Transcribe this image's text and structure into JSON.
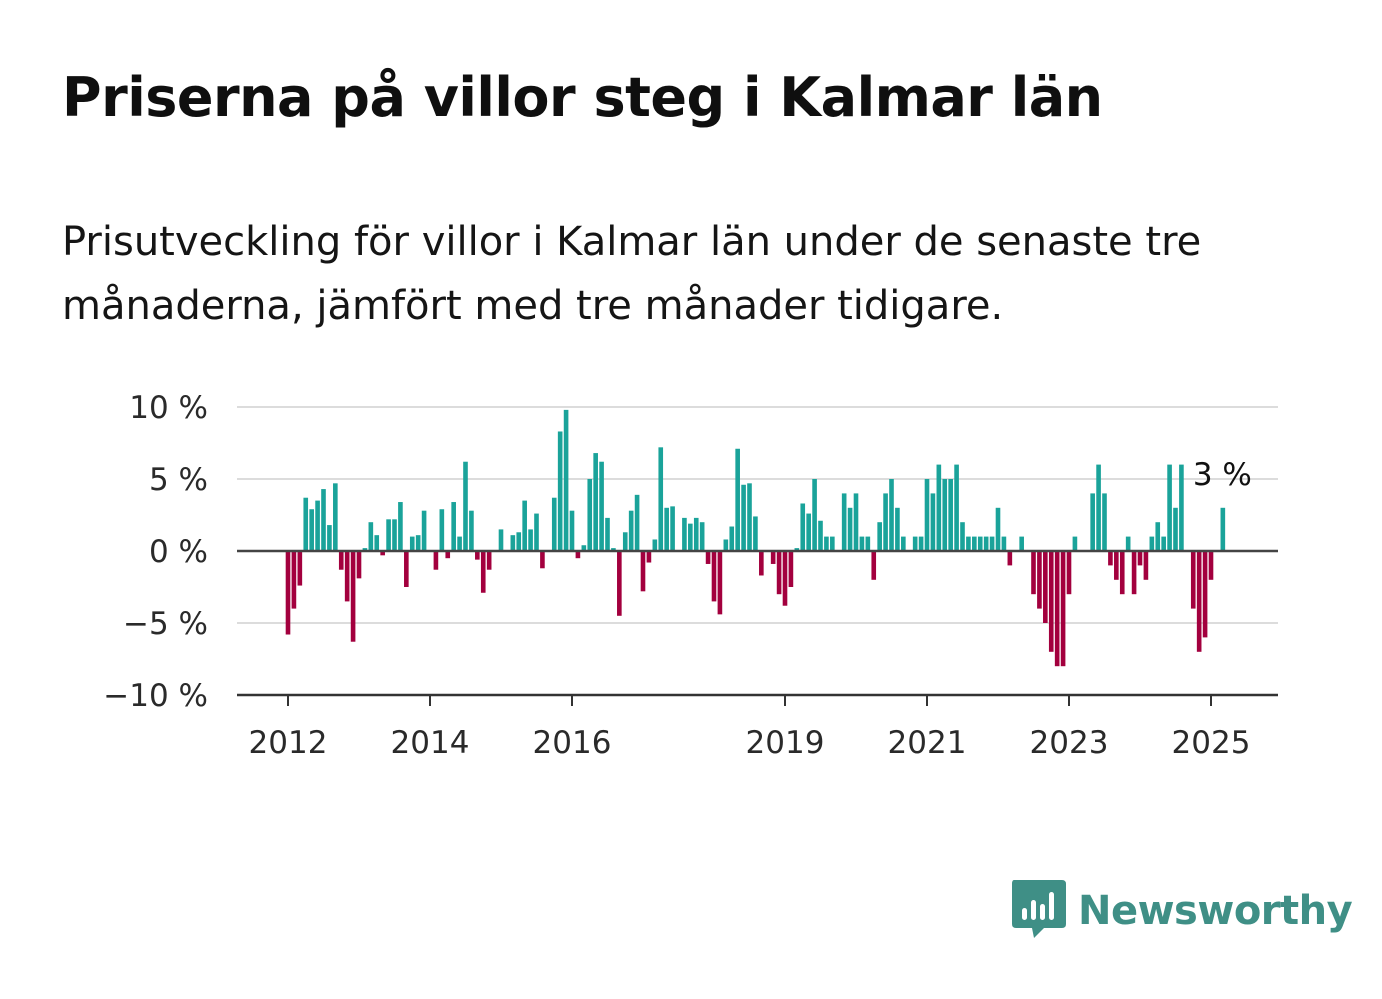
{
  "header": {
    "title": "Priserna på villor steg i Kalmar län",
    "subtitle": "Prisutveckling för villor i Kalmar län under de senaste tre månaderna, jämfört med tre månader tidigare."
  },
  "brand": {
    "name": "Newsworthy",
    "icon": "newsworthy-logo-icon",
    "color": "#3f8f86"
  },
  "colors": {
    "positive": "#1aa39a",
    "negative": "#a3003e",
    "grid": "#dcdcdc",
    "zero": "#444444"
  },
  "chart_data": {
    "type": "bar",
    "title": "",
    "xlabel": "",
    "ylabel": "",
    "grid": true,
    "ylim": [
      -10,
      10
    ],
    "y_ticks": [
      10,
      5,
      0,
      -5,
      -10
    ],
    "y_tick_labels": [
      "10 %",
      "5 %",
      "0 %",
      "−5 %",
      "−10 %"
    ],
    "x_ticks": [
      2012,
      2014,
      2016,
      2019,
      2021,
      2023,
      2025
    ],
    "x_tick_labels": [
      "2012",
      "2014",
      "2016",
      "2019",
      "2021",
      "2023",
      "2025"
    ],
    "start": "2012-01",
    "frequency": "monthly",
    "last_value_label": "3 %",
    "values": [
      -5.8,
      -4.0,
      -2.4,
      3.7,
      2.9,
      3.5,
      4.3,
      1.8,
      4.7,
      -1.3,
      -3.5,
      -6.3,
      -1.9,
      0.2,
      2.0,
      1.1,
      -0.3,
      2.2,
      2.2,
      3.4,
      -2.5,
      1.0,
      1.1,
      2.8,
      0.0,
      -1.3,
      2.9,
      -0.5,
      3.4,
      1.0,
      6.2,
      2.8,
      -0.6,
      -2.9,
      -1.3,
      0.0,
      1.5,
      0.0,
      1.1,
      1.3,
      3.5,
      1.5,
      2.6,
      -1.2,
      0.0,
      3.7,
      8.3,
      9.8,
      2.8,
      -0.5,
      0.4,
      5.0,
      6.8,
      6.2,
      2.3,
      0.2,
      -4.5,
      1.3,
      2.8,
      3.9,
      -2.8,
      -0.8,
      0.8,
      7.2,
      3.0,
      3.1,
      0.0,
      2.3,
      1.9,
      2.3,
      2.0,
      -0.9,
      -3.5,
      -4.4,
      0.8,
      1.7,
      7.1,
      4.6,
      4.7,
      2.4,
      -1.7,
      0.0,
      -0.9,
      -3.0,
      -3.8,
      -2.5,
      0.2,
      3.3,
      2.6,
      5.0,
      2.1,
      1.0,
      1.0,
      0.0,
      4.0,
      3.0,
      4.0,
      1.0,
      1.0,
      -2.0,
      2.0,
      4.0,
      5.0,
      3.0,
      1.0,
      0.0,
      1.0,
      1.0,
      5.0,
      4.0,
      6.0,
      5.0,
      5.0,
      6.0,
      2.0,
      1.0,
      1.0,
      1.0,
      1.0,
      1.0,
      3.0,
      1.0,
      -1.0,
      0.0,
      1.0,
      0.0,
      -3.0,
      -4.0,
      -5.0,
      -7.0,
      -8.0,
      -8.0,
      -3.0,
      1.0,
      0.0,
      0.0,
      4.0,
      6.0,
      4.0,
      -1.0,
      -2.0,
      -3.0,
      1.0,
      -3.0,
      -1.0,
      -2.0,
      1.0,
      2.0,
      1.0,
      6.0,
      3.0,
      6.0,
      0.0,
      -4.0,
      -7.0,
      -6.0,
      -2.0,
      0.0,
      3.0
    ]
  }
}
